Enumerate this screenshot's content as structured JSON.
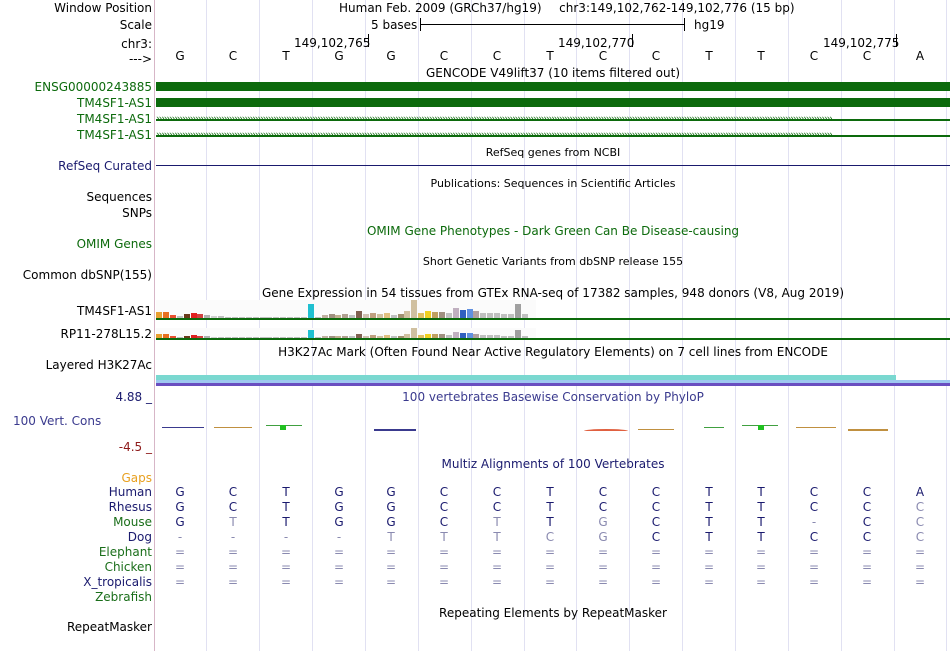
{
  "assembly_header": "Human Feb. 2009 (GRCh37/hg19)",
  "position_header": "chr3:149,102,762-149,102,776 (15 bp)",
  "labels": {
    "window_position": "Window Position",
    "scale": "Scale",
    "chrom": "chr3:",
    "strand_arrow": "--->",
    "gencode_1": "ENSG00000243885",
    "gencode_2": "TM4SF1-AS1",
    "gencode_3": "TM4SF1-AS1",
    "gencode_4": "TM4SF1-AS1",
    "refseq": "RefSeq Curated",
    "sequences": "Sequences",
    "snps": "SNPs",
    "omim": "OMIM Genes",
    "dbsnp": "Common dbSNP(155)",
    "gtex_1": "TM4SF1-AS1",
    "gtex_2": "RP11-278L15.2",
    "h3k27ac": "Layered H3K27Ac",
    "phylop_max": "4.88 _",
    "phylop_track": "100 Vert. Cons",
    "phylop_min": "-4.5 _",
    "gaps": "Gaps",
    "repeatmasker": "RepeatMasker"
  },
  "scale": {
    "bases": "5 bases",
    "db": "hg19"
  },
  "ruler": {
    "p1": "149,102,765",
    "p2": "149,102,770",
    "p3": "149,102,775"
  },
  "bases": [
    "G",
    "C",
    "T",
    "G",
    "G",
    "C",
    "C",
    "T",
    "C",
    "C",
    "T",
    "T",
    "C",
    "C",
    "A"
  ],
  "titles": {
    "gencode": "GENCODE V49lift37 (10 items filtered out)",
    "refseq": "RefSeq genes from NCBI",
    "publications": "Publications: Sequences in Scientific Articles",
    "omim": "OMIM Gene Phenotypes - Dark Green Can Be Disease-causing",
    "dbsnp": "Short Genetic Variants from dbSNP release 155",
    "gtex": "Gene Expression in 54 tissues from GTEx RNA-seq of 17382 samples, 948 donors (V8, Aug 2019)",
    "h3k27ac": "H3K27Ac Mark (Often Found Near Active Regulatory Elements) on 7 cell lines from ENCODE",
    "phylop": "100 vertebrates Basewise Conservation by PhyloP",
    "multiz": "Multiz Alignments of 100 Vertebrates",
    "repeatmasker": "Repeating Elements by RepeatMasker"
  },
  "species": [
    {
      "name": "Human",
      "color": "#1a1a6e",
      "bases": [
        "G",
        "C",
        "T",
        "G",
        "G",
        "C",
        "C",
        "T",
        "C",
        "C",
        "T",
        "T",
        "C",
        "C",
        "A"
      ]
    },
    {
      "name": "Rhesus",
      "color": "#1a1a6e",
      "bases": [
        "G",
        "C",
        "T",
        "G",
        "G",
        "C",
        "C",
        "T",
        "C",
        "C",
        "T",
        "T",
        "C",
        "C",
        "C"
      ]
    },
    {
      "name": "Mouse",
      "color": "#1a6e1a",
      "bases": [
        "G",
        "T",
        "T",
        "G",
        "G",
        "C",
        "T",
        "T",
        "G",
        "C",
        "T",
        "T",
        "-",
        "C",
        "C"
      ]
    },
    {
      "name": "Dog",
      "color": "#1a1a6e",
      "bases": [
        "-",
        "-",
        "-",
        "-",
        "T",
        "T",
        "T",
        "C",
        "G",
        "C",
        "T",
        "T",
        "C",
        "C",
        "C"
      ]
    },
    {
      "name": "Elephant",
      "color": "#1a6e1a",
      "bases": [
        "=",
        "=",
        "=",
        "=",
        "=",
        "=",
        "=",
        "=",
        "=",
        "=",
        "=",
        "=",
        "=",
        "=",
        "="
      ]
    },
    {
      "name": "Chicken",
      "color": "#1a6e1a",
      "bases": [
        "=",
        "=",
        "=",
        "=",
        "=",
        "=",
        "=",
        "=",
        "=",
        "=",
        "=",
        "=",
        "=",
        "=",
        "="
      ]
    },
    {
      "name": "X_tropicalis",
      "color": "#1a1a6e",
      "bases": [
        "=",
        "=",
        "=",
        "=",
        "=",
        "=",
        "=",
        "=",
        "=",
        "=",
        "=",
        "=",
        "=",
        "=",
        "="
      ]
    },
    {
      "name": "Zebrafish",
      "color": "#1a6e1a",
      "bases": [
        "",
        "",
        "",
        "",
        "",
        "",
        "",
        "",
        "",
        "",
        "",
        "",
        "",
        "",
        ""
      ]
    }
  ],
  "gtex_bars": [
    [
      0.35,
      "#e8a030"
    ],
    [
      0.35,
      "#e87020"
    ],
    [
      0.15,
      "#e85030"
    ],
    [
      0.1,
      "#c0c0c0"
    ],
    [
      0.2,
      "#6a3a1a"
    ],
    [
      0.3,
      "#e02020"
    ],
    [
      0.2,
      "#d04040"
    ],
    [
      0.15,
      "#b0b0b0"
    ],
    [
      0.1,
      "#d0d0d0"
    ],
    [
      0.1,
      "#c0c0c0"
    ],
    [
      0.05,
      "#c0c0c0"
    ],
    [
      0.05,
      "#c0c0c0"
    ],
    [
      0.05,
      "#c0c0c0"
    ],
    [
      0.05,
      "#c0c0c0"
    ],
    [
      0.05,
      "#c0c0c0"
    ],
    [
      0.05,
      "#c0c0c0"
    ],
    [
      0.05,
      "#c0c0c0"
    ],
    [
      0.05,
      "#c0c0c0"
    ],
    [
      0.05,
      "#c0c0c0"
    ],
    [
      0.05,
      "#c0c0c0"
    ],
    [
      0.05,
      "#c0c0c0"
    ],
    [
      0.05,
      "#c0c0c0"
    ],
    [
      0.75,
      "#20c0d0"
    ],
    [
      0.05,
      "#c0c0c0"
    ],
    [
      0.15,
      "#c0b0a0"
    ],
    [
      0.2,
      "#a09080"
    ],
    [
      0.15,
      "#c0b090"
    ],
    [
      0.2,
      "#b0a090"
    ],
    [
      0.15,
      "#c0c0c0"
    ],
    [
      0.4,
      "#806050"
    ],
    [
      0.2,
      "#d0c0b0"
    ],
    [
      0.3,
      "#c0a080"
    ],
    [
      0.2,
      "#d0c0a0"
    ],
    [
      0.3,
      "#e0c080"
    ],
    [
      0.15,
      "#c0c0c0"
    ],
    [
      0.2,
      "#a09070"
    ],
    [
      0.4,
      "#d0c0a0"
    ],
    [
      1.0,
      "#d0c0a0"
    ],
    [
      0.3,
      "#e0c060"
    ],
    [
      0.4,
      "#f0d020"
    ],
    [
      0.35,
      "#c0a060"
    ],
    [
      0.35,
      "#a09080"
    ],
    [
      0.3,
      "#c0c0c0"
    ],
    [
      0.55,
      "#c0b0c0"
    ],
    [
      0.45,
      "#3060c0"
    ],
    [
      0.5,
      "#6090e0"
    ],
    [
      0.4,
      "#b0a0a0"
    ],
    [
      0.3,
      "#c0c0c0"
    ],
    [
      0.3,
      "#c0c0c0"
    ],
    [
      0.3,
      "#c0c0c0"
    ],
    [
      0.2,
      "#c0c0c0"
    ],
    [
      0.2,
      "#c0c0c0"
    ],
    [
      0.8,
      "#a0a0a0"
    ],
    [
      0.2,
      "#c0c0c0"
    ]
  ]
}
